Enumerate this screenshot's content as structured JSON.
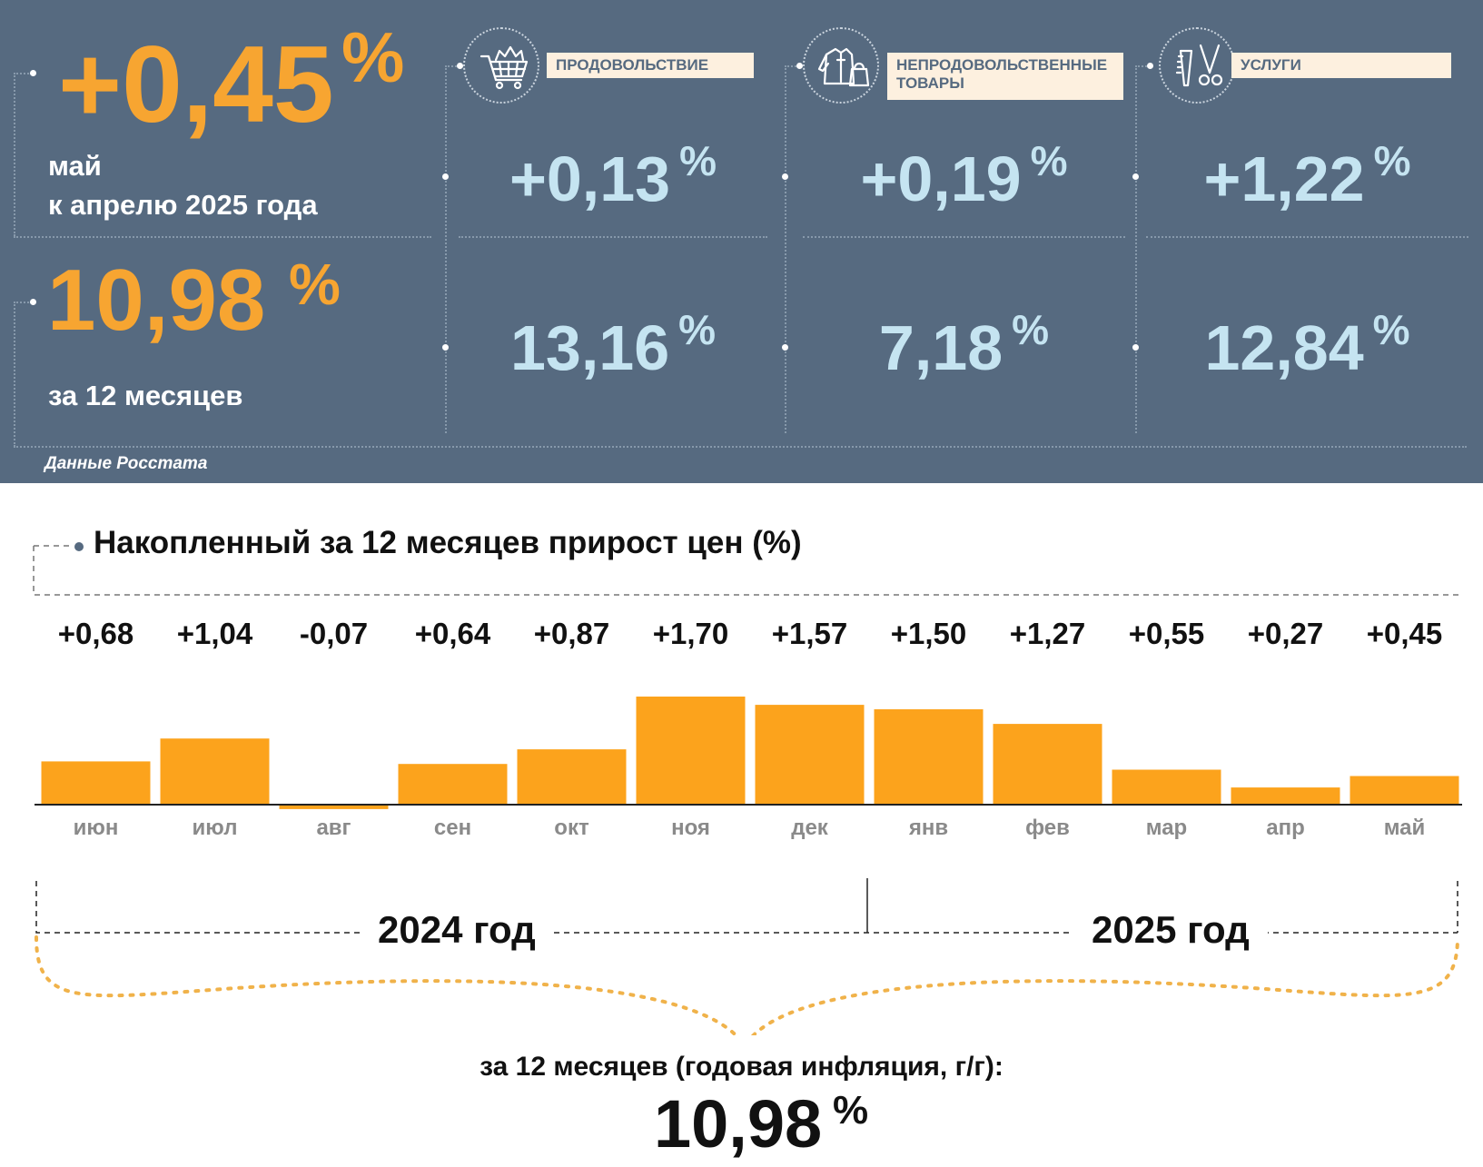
{
  "monthly": {
    "value": "+0,45",
    "pct": "%",
    "caption_line1": "май",
    "caption_line2": "к апрелю 2025 года"
  },
  "annual": {
    "value": "10,98",
    "pct": "%",
    "caption": "за 12 месяцев"
  },
  "categories": [
    {
      "label": "ПРОДОВОЛЬСТВИЕ",
      "icon": "shopping-cart-icon",
      "monthly": "+0,13",
      "annual": "13,16"
    },
    {
      "label_line1": "НЕПРОДОВОЛЬСТВЕННЫЕ",
      "label_line2": "ТОВАРЫ",
      "icon": "clothing-icon",
      "monthly": "+0,19",
      "annual": "7,18"
    },
    {
      "label": "УСЛУГИ",
      "icon": "comb-scissors-icon",
      "monthly": "+1,22",
      "annual": "12,84"
    }
  ],
  "pct_sign": "%",
  "source": "Данные Росстата",
  "chart_data": {
    "type": "bar",
    "title": "Накопленный за 12 месяцев прирост цен (%)",
    "categories": [
      "июн",
      "июл",
      "авг",
      "сен",
      "окт",
      "ноя",
      "дек",
      "янв",
      "фев",
      "мар",
      "апр",
      "май"
    ],
    "values": [
      0.68,
      1.04,
      -0.07,
      0.64,
      0.87,
      1.7,
      1.57,
      1.5,
      1.27,
      0.55,
      0.27,
      0.45
    ],
    "value_labels": [
      "+0,68",
      "+1,04",
      "-0,07",
      "+0,64",
      "+0,87",
      "+1,70",
      "+1,57",
      "+1,50",
      "+1,27",
      "+0,55",
      "+0,27",
      "+0,45"
    ],
    "year_groups": [
      "2024 год",
      "2025 год"
    ],
    "bar_color": "#fca31c",
    "grid": false
  },
  "summary": {
    "caption": "за 12 месяцев (годовая инфляция, г/г):",
    "value": "10,98",
    "pct": "%"
  },
  "colors": {
    "panel": "#566a80",
    "accent": "#f7a531",
    "value": "#c5e4f1",
    "label_bg": "#fdf0df",
    "brace": "#f0b24a"
  }
}
